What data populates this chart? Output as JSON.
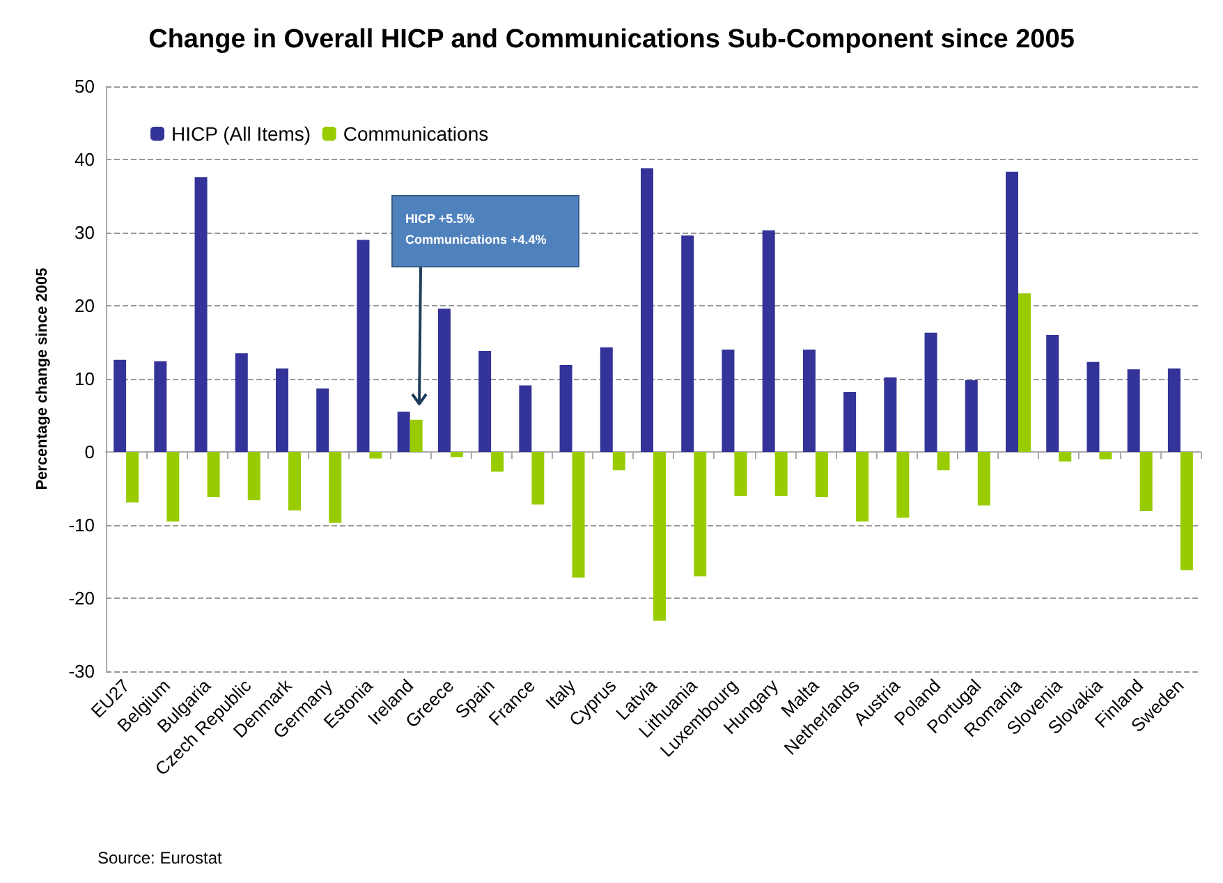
{
  "chart_data": {
    "type": "bar",
    "title": "Change in Overall HICP and Communications Sub-Component since 2005",
    "ylabel": "Percentage change since 2005",
    "categories": [
      "EU27",
      "Belgium",
      "Bulgaria",
      "Czech Republic",
      "Denmark",
      "Germany",
      "Estonia",
      "Ireland",
      "Greece",
      "Spain",
      "France",
      "Italy",
      "Cyprus",
      "Latvia",
      "Lithuania",
      "Luxembourg",
      "Hungary",
      "Malta",
      "Netherlands",
      "Austria",
      "Poland",
      "Portugal",
      "Romania",
      "Slovenia",
      "Slovakia",
      "Finland",
      "Sweden"
    ],
    "series": [
      {
        "name": "HICP (All Items)",
        "color": "#333399",
        "values": [
          12.6,
          12.4,
          37.6,
          13.5,
          11.4,
          8.7,
          29.0,
          5.5,
          19.6,
          13.8,
          9.1,
          11.9,
          14.3,
          38.8,
          29.6,
          14.0,
          30.3,
          14.0,
          8.2,
          10.2,
          16.3,
          9.8,
          38.3,
          16.0,
          12.3,
          11.3,
          11.4
        ]
      },
      {
        "name": "Communications",
        "color": "#99cc00",
        "values": [
          -6.9,
          -9.5,
          -6.2,
          -6.6,
          -8.0,
          -9.7,
          -0.9,
          4.4,
          -0.7,
          -2.7,
          -7.2,
          -17.2,
          -2.5,
          -23.1,
          -17.0,
          -6.0,
          -6.0,
          -6.2,
          -9.5,
          -9.0,
          -2.5,
          -7.3,
          21.7,
          -1.3,
          -1.0,
          -8.1,
          -16.2
        ]
      }
    ],
    "ylim": [
      -30,
      50
    ],
    "yticks": [
      -30,
      -20,
      -10,
      0,
      10,
      20,
      30,
      40,
      50
    ],
    "grid": "y",
    "legend": "top left",
    "annotations": [
      "HICP +5.5%\nCommunications +4.4%",
      "Source: Eurostat"
    ]
  }
}
